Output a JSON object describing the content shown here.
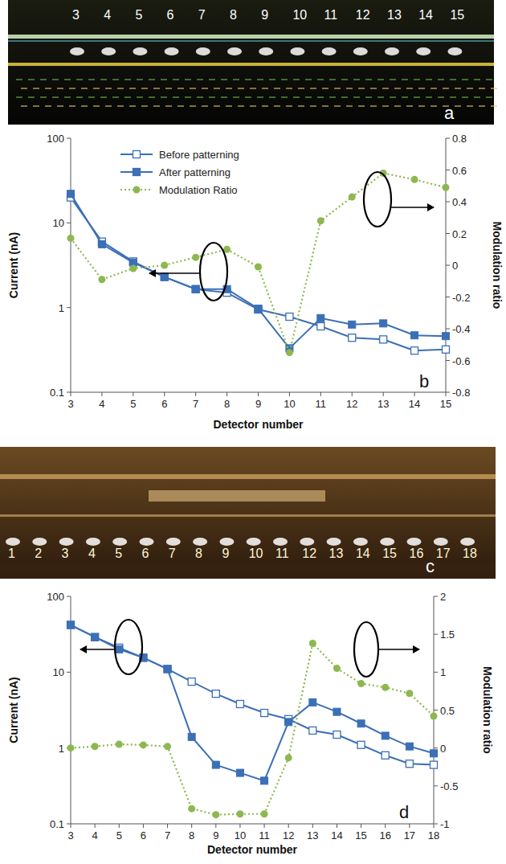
{
  "images": [
    {
      "annotation": "a",
      "labels": [
        "3",
        "4",
        "5",
        "6",
        "7",
        "8",
        "9",
        "10",
        "11",
        "12",
        "13",
        "14",
        "15"
      ]
    },
    {
      "annotation": "c",
      "labels": [
        "1",
        "2",
        "3",
        "4",
        "5",
        "6",
        "7",
        "8",
        "9",
        "10",
        "11",
        "12",
        "13",
        "14",
        "15",
        "16",
        "17",
        "18"
      ]
    }
  ],
  "chart_data": [
    {
      "type": "line",
      "annotation": "b",
      "x_label": "Detector number",
      "y_label": "Current (nA)",
      "y2_label": "Modulation ratio",
      "x": [
        3,
        4,
        5,
        6,
        7,
        8,
        9,
        10,
        11,
        12,
        13,
        14,
        15
      ],
      "xlim": [
        3,
        15
      ],
      "xticks": [
        3,
        4,
        5,
        6,
        7,
        8,
        9,
        10,
        11,
        12,
        13,
        14,
        15
      ],
      "log": "y",
      "ylim": [
        0.1,
        100
      ],
      "yticks": [
        0.1,
        1,
        10,
        100
      ],
      "y2lim": [
        -0.8,
        0.8
      ],
      "y2ticks": [
        -0.8,
        -0.6,
        -0.4,
        -0.2,
        0,
        0.2,
        0.4,
        0.6,
        0.8
      ],
      "grid": false,
      "legend": "top",
      "series": [
        {
          "name": "Before patterning",
          "color": "#3b6fb6",
          "marker": "hollow-square",
          "line_style": "solid",
          "values": [
            20,
            6,
            3.5,
            2.3,
            1.65,
            1.5,
            0.95,
            0.78,
            0.6,
            0.44,
            0.42,
            0.31,
            0.32
          ]
        },
        {
          "name": "After patterning",
          "color": "#3b6fb6",
          "marker": "square",
          "line_style": "solid",
          "values": [
            22,
            5.6,
            3.4,
            2.3,
            1.65,
            1.65,
            0.97,
            0.33,
            0.75,
            0.63,
            0.65,
            0.47,
            0.46
          ]
        },
        {
          "name": "Modulation Ratio",
          "color": "#8db84f",
          "marker": "circle",
          "line_style": "dotted",
          "axis": "y2",
          "values": [
            0.17,
            -0.09,
            -0.02,
            0.0,
            0.05,
            0.1,
            -0.01,
            -0.55,
            0.28,
            0.43,
            0.58,
            0.54,
            0.49
          ]
        }
      ]
    },
    {
      "type": "line",
      "annotation": "d",
      "x_label": "Detector number",
      "y_label": "Current (nA)",
      "y2_label": "Modulation ratio",
      "x": [
        3,
        4,
        5,
        6,
        7,
        8,
        9,
        10,
        11,
        12,
        13,
        14,
        15,
        16,
        17,
        18
      ],
      "xlim": [
        3,
        18
      ],
      "xticks": [
        3,
        4,
        5,
        6,
        7,
        8,
        9,
        10,
        11,
        12,
        13,
        14,
        15,
        16,
        17,
        18
      ],
      "log": "y",
      "ylim": [
        0.1,
        100
      ],
      "yticks": [
        0.1,
        1,
        10,
        100
      ],
      "y2lim": [
        -1,
        2
      ],
      "y2ticks": [
        -1,
        -0.5,
        0,
        0.5,
        1,
        1.5,
        2
      ],
      "grid": false,
      "series": [
        {
          "color": "#3b6fb6",
          "marker": "hollow-square",
          "line_style": "solid",
          "values": [
            42,
            29,
            21,
            15.5,
            11,
            7.5,
            5.2,
            3.8,
            2.9,
            2.4,
            1.7,
            1.5,
            1.1,
            0.8,
            0.62,
            0.6
          ]
        },
        {
          "color": "#3b6fb6",
          "marker": "square",
          "line_style": "solid",
          "values": [
            42,
            29,
            20,
            15.5,
            11,
            1.4,
            0.6,
            0.47,
            0.37,
            2.2,
            4,
            3,
            2.1,
            1.45,
            1.05,
            0.85
          ]
        },
        {
          "color": "#8db84f",
          "marker": "circle",
          "line_style": "dotted",
          "axis": "y2",
          "values": [
            0,
            0.02,
            0.05,
            0.04,
            0.02,
            -0.8,
            -0.88,
            -0.87,
            -0.87,
            -0.13,
            1.38,
            1.05,
            0.85,
            0.8,
            0.72,
            0.42
          ]
        }
      ]
    }
  ]
}
